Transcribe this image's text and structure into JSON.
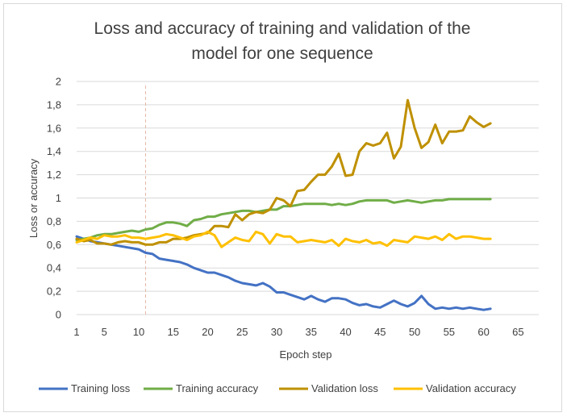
{
  "chart_data": {
    "type": "line",
    "title_lines": [
      "Loss and accuracy of training and validation of the",
      "model for one sequence"
    ],
    "xlabel": "Epoch step",
    "ylabel": "Loss or accuracy",
    "xlim": [
      1,
      68
    ],
    "ylim": [
      0,
      2
    ],
    "x_ticks": [
      1,
      5,
      10,
      15,
      20,
      25,
      30,
      35,
      40,
      45,
      50,
      55,
      60,
      65
    ],
    "y_ticks": [
      0,
      0.2,
      0.4,
      0.6,
      0.8,
      1,
      1.2,
      1.4,
      1.6,
      1.8,
      2
    ],
    "y_tick_labels": [
      "0",
      "0,2",
      "0,4",
      "0,6",
      "0,8",
      "1",
      "1,2",
      "1,4",
      "1,6",
      "1,8",
      "2"
    ],
    "grid": "horizontal",
    "marker_line_x": 11,
    "legend_position": "bottom",
    "x": [
      1,
      2,
      3,
      4,
      5,
      6,
      7,
      8,
      9,
      10,
      11,
      12,
      13,
      14,
      15,
      16,
      17,
      18,
      19,
      20,
      21,
      22,
      23,
      24,
      25,
      26,
      27,
      28,
      29,
      30,
      31,
      32,
      33,
      34,
      35,
      36,
      37,
      38,
      39,
      40,
      41,
      42,
      43,
      44,
      45,
      46,
      47,
      48,
      49,
      50,
      51,
      52,
      53,
      54,
      55,
      56,
      57,
      58,
      59,
      60,
      61
    ],
    "series": [
      {
        "name": "Training loss",
        "color": "#4472c4",
        "values": [
          0.67,
          0.65,
          0.63,
          0.62,
          0.61,
          0.6,
          0.59,
          0.58,
          0.57,
          0.56,
          0.53,
          0.52,
          0.48,
          0.47,
          0.46,
          0.45,
          0.43,
          0.4,
          0.38,
          0.36,
          0.36,
          0.34,
          0.32,
          0.29,
          0.27,
          0.26,
          0.25,
          0.27,
          0.24,
          0.19,
          0.19,
          0.17,
          0.15,
          0.13,
          0.16,
          0.13,
          0.11,
          0.14,
          0.14,
          0.13,
          0.1,
          0.08,
          0.09,
          0.07,
          0.06,
          0.09,
          0.12,
          0.09,
          0.07,
          0.1,
          0.16,
          0.09,
          0.05,
          0.06,
          0.05,
          0.06,
          0.05,
          0.06,
          0.05,
          0.04,
          0.05
        ]
      },
      {
        "name": "Training accuracy",
        "color": "#70ad47",
        "values": [
          0.64,
          0.65,
          0.66,
          0.68,
          0.69,
          0.69,
          0.7,
          0.71,
          0.72,
          0.71,
          0.73,
          0.74,
          0.77,
          0.79,
          0.79,
          0.78,
          0.76,
          0.81,
          0.82,
          0.84,
          0.84,
          0.86,
          0.87,
          0.88,
          0.89,
          0.89,
          0.88,
          0.89,
          0.9,
          0.9,
          0.93,
          0.93,
          0.94,
          0.95,
          0.95,
          0.95,
          0.95,
          0.94,
          0.95,
          0.94,
          0.95,
          0.97,
          0.98,
          0.98,
          0.98,
          0.98,
          0.96,
          0.97,
          0.98,
          0.97,
          0.96,
          0.97,
          0.98,
          0.98,
          0.99,
          0.99,
          0.99,
          0.99,
          0.99,
          0.99,
          0.99
        ]
      },
      {
        "name": "Validation loss",
        "color": "#bf9000",
        "values": [
          0.65,
          0.63,
          0.64,
          0.61,
          0.61,
          0.6,
          0.62,
          0.63,
          0.62,
          0.62,
          0.6,
          0.6,
          0.62,
          0.62,
          0.65,
          0.65,
          0.66,
          0.68,
          0.69,
          0.7,
          0.76,
          0.76,
          0.75,
          0.86,
          0.81,
          0.86,
          0.88,
          0.87,
          0.9,
          1.0,
          0.98,
          0.93,
          1.06,
          1.07,
          1.14,
          1.2,
          1.2,
          1.27,
          1.38,
          1.19,
          1.2,
          1.4,
          1.47,
          1.45,
          1.47,
          1.56,
          1.34,
          1.44,
          1.84,
          1.6,
          1.43,
          1.48,
          1.63,
          1.47,
          1.57,
          1.57,
          1.58,
          1.7,
          1.65,
          1.61,
          1.64
        ]
      },
      {
        "name": "Validation accuracy",
        "color": "#ffc000",
        "values": [
          0.62,
          0.64,
          0.66,
          0.65,
          0.68,
          0.67,
          0.67,
          0.68,
          0.66,
          0.66,
          0.65,
          0.66,
          0.67,
          0.69,
          0.68,
          0.66,
          0.64,
          0.67,
          0.68,
          0.71,
          0.68,
          0.58,
          0.62,
          0.66,
          0.64,
          0.63,
          0.71,
          0.69,
          0.61,
          0.69,
          0.67,
          0.67,
          0.62,
          0.63,
          0.64,
          0.63,
          0.62,
          0.64,
          0.59,
          0.65,
          0.63,
          0.62,
          0.64,
          0.61,
          0.62,
          0.59,
          0.64,
          0.63,
          0.62,
          0.67,
          0.66,
          0.65,
          0.67,
          0.64,
          0.69,
          0.65,
          0.67,
          0.67,
          0.66,
          0.65,
          0.65
        ]
      }
    ]
  }
}
